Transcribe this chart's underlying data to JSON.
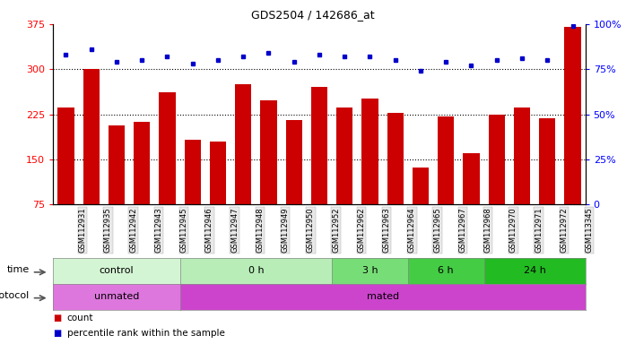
{
  "title": "GDS2504 / 142686_at",
  "samples": [
    "GSM112931",
    "GSM112935",
    "GSM112942",
    "GSM112943",
    "GSM112945",
    "GSM112946",
    "GSM112947",
    "GSM112948",
    "GSM112949",
    "GSM112950",
    "GSM112952",
    "GSM112962",
    "GSM112963",
    "GSM112964",
    "GSM112965",
    "GSM112967",
    "GSM112968",
    "GSM112970",
    "GSM112971",
    "GSM112972",
    "GSM113345"
  ],
  "bar_values": [
    237,
    300,
    207,
    213,
    262,
    183,
    180,
    275,
    248,
    215,
    271,
    237,
    252,
    228,
    137,
    222,
    160,
    225,
    237,
    218,
    370
  ],
  "dot_values": [
    83,
    86,
    79,
    80,
    82,
    78,
    80,
    82,
    84,
    79,
    83,
    82,
    82,
    80,
    74,
    79,
    77,
    80,
    81,
    80,
    99
  ],
  "bar_color": "#cc0000",
  "dot_color": "#0000cc",
  "ylim_left": [
    75,
    375
  ],
  "ylim_right": [
    0,
    100
  ],
  "yticks_left": [
    75,
    150,
    225,
    300,
    375
  ],
  "yticks_right": [
    0,
    25,
    50,
    75,
    100
  ],
  "grid_values": [
    150,
    225,
    300
  ],
  "time_groups": [
    {
      "label": "control",
      "start": 0,
      "end": 5,
      "color": "#d4f5d4"
    },
    {
      "label": "0 h",
      "start": 5,
      "end": 11,
      "color": "#b8edb8"
    },
    {
      "label": "3 h",
      "start": 11,
      "end": 14,
      "color": "#77dd77"
    },
    {
      "label": "6 h",
      "start": 14,
      "end": 17,
      "color": "#44cc44"
    },
    {
      "label": "24 h",
      "start": 17,
      "end": 21,
      "color": "#22bb22"
    }
  ],
  "protocol_groups": [
    {
      "label": "unmated",
      "start": 0,
      "end": 5,
      "color": "#dd77dd"
    },
    {
      "label": "mated",
      "start": 5,
      "end": 21,
      "color": "#cc44cc"
    }
  ],
  "time_label": "time",
  "protocol_label": "protocol",
  "legend_count": "count",
  "legend_pct": "percentile rank within the sample",
  "background_color": "#ffffff",
  "plot_bg": "#ffffff",
  "xlabel_bg": "#dddddd"
}
